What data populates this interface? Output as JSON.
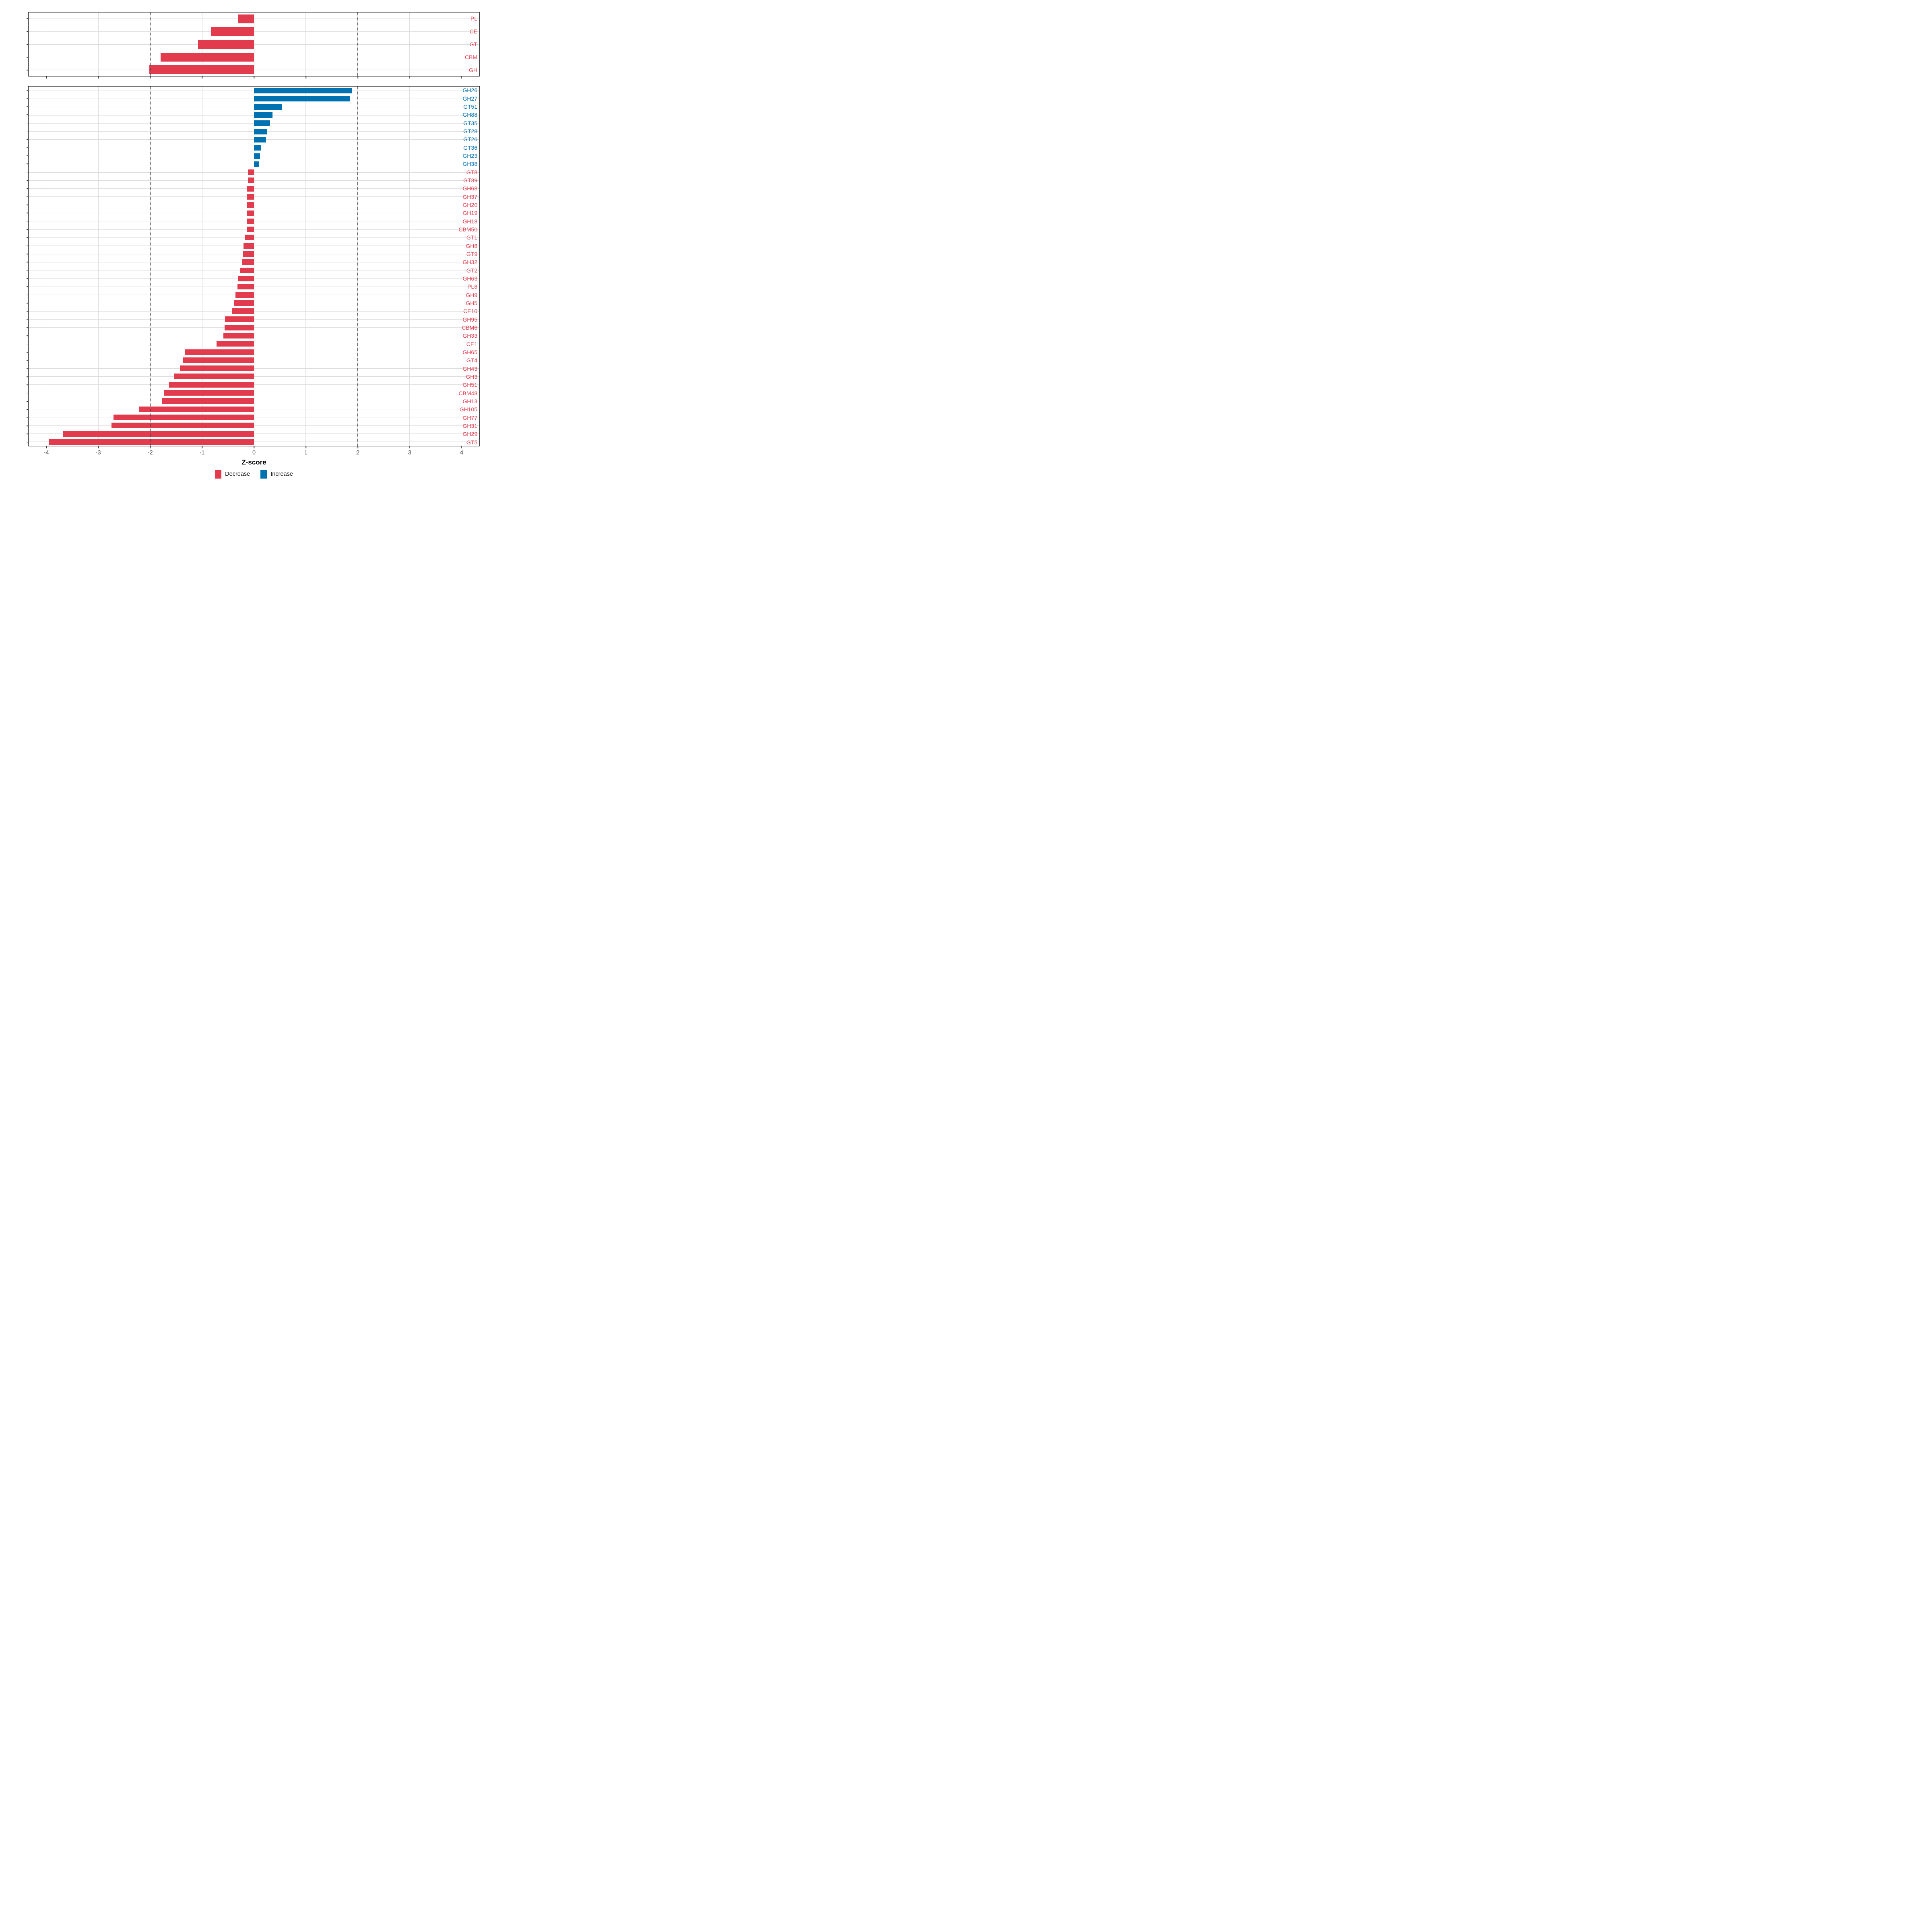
{
  "chart_data": [
    {
      "panel": "top",
      "type": "bar",
      "orientation": "horizontal",
      "categories": [
        "PL",
        "CE",
        "GT",
        "CBM",
        "GH"
      ],
      "values": [
        -0.31,
        -0.83,
        -1.08,
        -1.8,
        -2.02
      ],
      "xlim": [
        -4.35,
        4.35
      ],
      "grid": true
    },
    {
      "panel": "bottom",
      "type": "bar",
      "orientation": "horizontal",
      "categories": [
        "GH26",
        "GH27",
        "GT51",
        "GH88",
        "GT35",
        "GT28",
        "GT26",
        "GT36",
        "GH23",
        "GH38",
        "GT8",
        "GT39",
        "GH68",
        "GH37",
        "GH20",
        "GH19",
        "GH18",
        "CBM50",
        "GT1",
        "GH8",
        "GT9",
        "GH32",
        "GT2",
        "GH63",
        "PL8",
        "GH9",
        "GH5",
        "CE10",
        "GH95",
        "CBM6",
        "GH33",
        "CE1",
        "GH65",
        "GT4",
        "GH43",
        "GH3",
        "GH51",
        "CBM48",
        "GH13",
        "GH105",
        "GH77",
        "GH31",
        "GH29",
        "GT5"
      ],
      "values": [
        1.89,
        1.86,
        0.54,
        0.36,
        0.31,
        0.26,
        0.23,
        0.13,
        0.12,
        0.09,
        -0.12,
        -0.12,
        -0.13,
        -0.13,
        -0.13,
        -0.13,
        -0.14,
        -0.14,
        -0.18,
        -0.2,
        -0.22,
        -0.23,
        -0.27,
        -0.3,
        -0.32,
        -0.36,
        -0.38,
        -0.43,
        -0.56,
        -0.57,
        -0.59,
        -0.72,
        -1.33,
        -1.37,
        -1.43,
        -1.54,
        -1.64,
        -1.74,
        -1.77,
        -2.22,
        -2.71,
        -2.75,
        -3.68,
        -3.95
      ],
      "xlim": [
        -4.35,
        4.35
      ],
      "grid": true
    }
  ],
  "axis": {
    "label": "Z-score",
    "ticks": [
      -4,
      -3,
      -2,
      -1,
      0,
      1,
      2,
      3,
      4
    ],
    "tick_labels": [
      "-4",
      "-3",
      "-2",
      "-1",
      "0",
      "1",
      "2",
      "3",
      "4"
    ],
    "reference_lines": [
      -2,
      2
    ]
  },
  "legend": {
    "position": "bottom",
    "items": [
      {
        "label": "Decrease",
        "color": "#E23B4E"
      },
      {
        "label": "Increase",
        "color": "#0072B2"
      }
    ]
  },
  "colors": {
    "decrease": "#E23B4E",
    "increase": "#0072B2",
    "grid": "#DCDCDC",
    "reference_line": "#3A3A3A",
    "axis_text": "#454545"
  }
}
